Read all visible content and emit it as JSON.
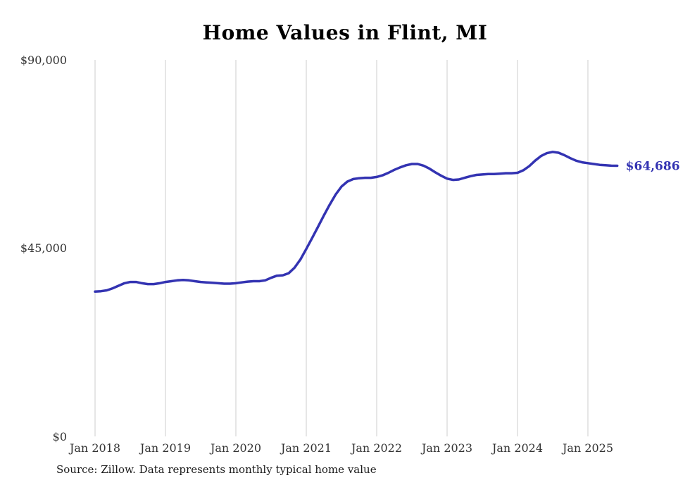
{
  "title": "Home Values in Flint, MI",
  "source_note": "Source: Zillow. Data represents monthly typical home value",
  "end_label": "$64,686",
  "colors": {
    "line": "#3333b2",
    "grid": "#cccccc",
    "axis_text": "#333333",
    "title": "#000000",
    "end_label": "#3333b2"
  },
  "chart_data": {
    "type": "line",
    "title": "Home Values in Flint, MI",
    "xlabel": "",
    "ylabel": "",
    "ylim": [
      0,
      90000
    ],
    "grid": "vertical-only",
    "legend": "none",
    "x_start": "2018-01",
    "x_end": "2025-06",
    "x_tick_labels": [
      "Jan 2018",
      "Jan 2019",
      "Jan 2020",
      "Jan 2021",
      "Jan 2022",
      "Jan 2023",
      "Jan 2024",
      "Jan 2025"
    ],
    "y_tick_labels": [
      "$0",
      "$45,000",
      "$90,000"
    ],
    "final_value": 64686,
    "series": [
      {
        "name": "Monthly typical home value",
        "values": [
          34600,
          34700,
          34900,
          35400,
          36000,
          36600,
          36900,
          36900,
          36600,
          36400,
          36400,
          36600,
          36900,
          37100,
          37300,
          37400,
          37300,
          37100,
          36900,
          36800,
          36700,
          36600,
          36500,
          36500,
          36600,
          36800,
          37000,
          37100,
          37100,
          37300,
          37900,
          38400,
          38500,
          39000,
          40300,
          42300,
          44800,
          47400,
          50100,
          52800,
          55400,
          57800,
          59700,
          60900,
          61500,
          61700,
          61800,
          61800,
          62000,
          62400,
          63000,
          63700,
          64300,
          64800,
          65100,
          65100,
          64700,
          64000,
          63100,
          62300,
          61600,
          61300,
          61400,
          61800,
          62200,
          62500,
          62600,
          62700,
          62700,
          62800,
          62900,
          62900,
          63000,
          63600,
          64600,
          65900,
          67000,
          67700,
          68000,
          67800,
          67200,
          66500,
          65900,
          65500,
          65300,
          65100,
          64900,
          64800,
          64700,
          64686
        ]
      }
    ]
  }
}
